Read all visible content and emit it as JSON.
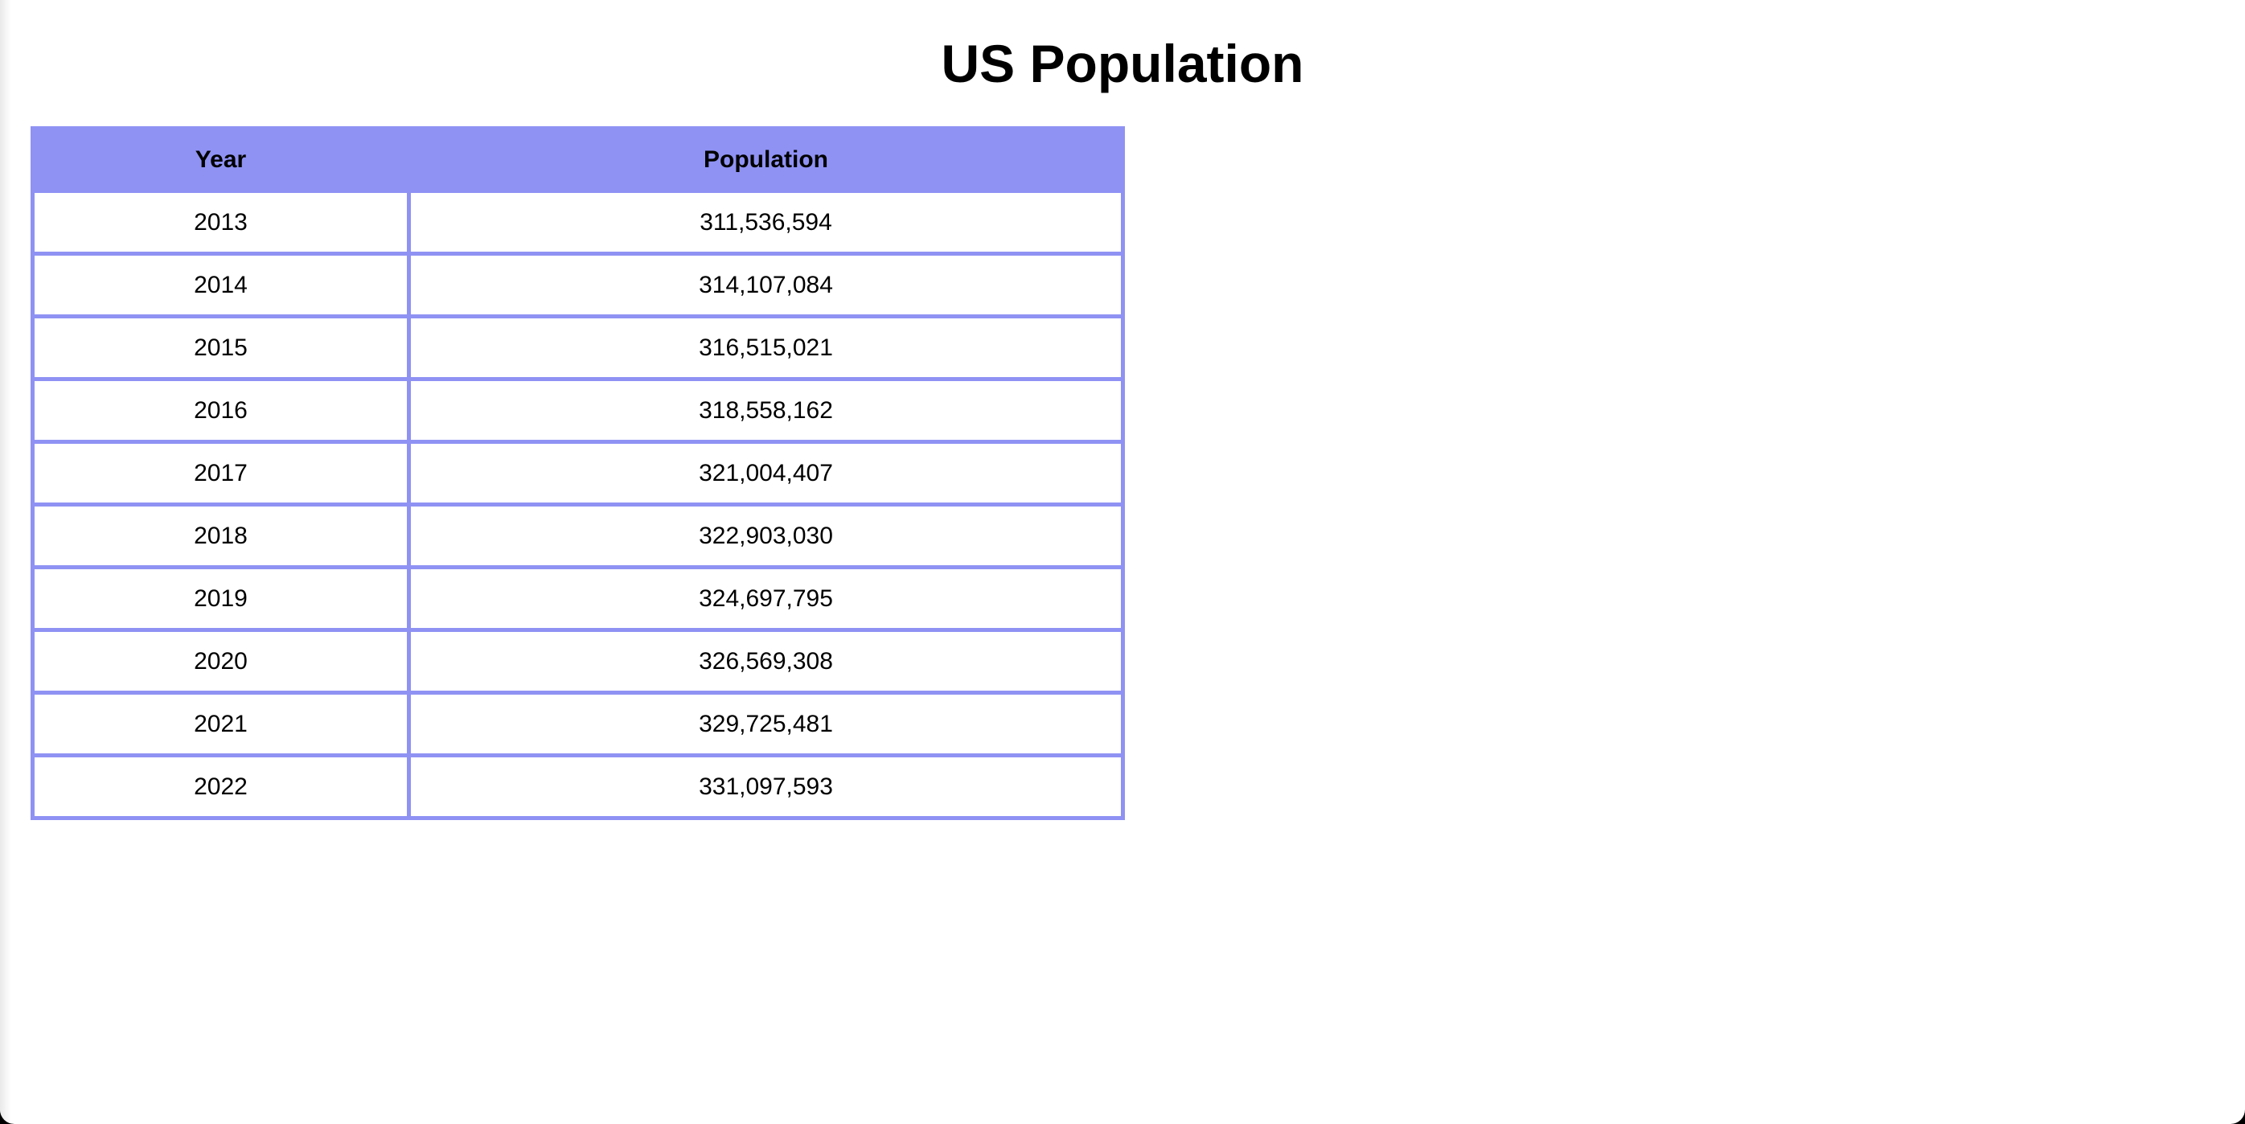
{
  "page": {
    "title": "US Population"
  },
  "colors": {
    "header_background": "#8f92f3",
    "border": "#8f92f3",
    "background": "#ffffff",
    "text": "#000000"
  },
  "chart_data": {
    "type": "table",
    "title": "US Population",
    "columns": [
      "Year",
      "Population"
    ],
    "rows": [
      [
        "2013",
        "311,536,594"
      ],
      [
        "2014",
        "314,107,084"
      ],
      [
        "2015",
        "316,515,021"
      ],
      [
        "2016",
        "318,558,162"
      ],
      [
        "2017",
        "321,004,407"
      ],
      [
        "2018",
        "322,903,030"
      ],
      [
        "2019",
        "324,697,795"
      ],
      [
        "2020",
        "326,569,308"
      ],
      [
        "2021",
        "329,725,481"
      ],
      [
        "2022",
        "331,097,593"
      ]
    ]
  }
}
